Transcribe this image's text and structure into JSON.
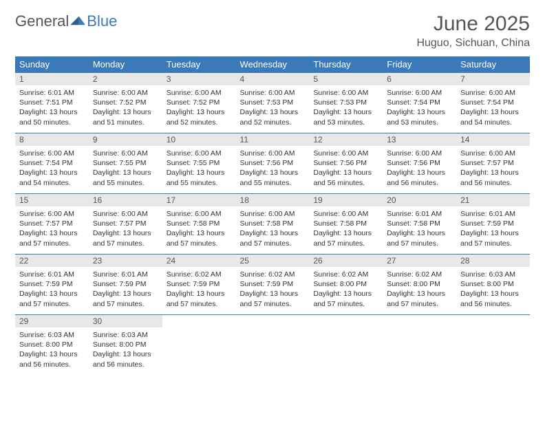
{
  "logo": {
    "word1": "General",
    "word2": "Blue"
  },
  "title": "June 2025",
  "location": "Huguo, Sichuan, China",
  "colors": {
    "header_bg": "#3a7ab8",
    "header_fg": "#ffffff",
    "daynum_bg": "#e8e8e8",
    "text": "#333333",
    "muted": "#555555",
    "rule": "#3a7ab8"
  },
  "typography": {
    "month_title_fontsize": 30,
    "location_fontsize": 16,
    "dayhdr_fontsize": 13,
    "daynum_fontsize": 12,
    "body_fontsize": 10.5
  },
  "weekdays": [
    "Sunday",
    "Monday",
    "Tuesday",
    "Wednesday",
    "Thursday",
    "Friday",
    "Saturday"
  ],
  "days": [
    {
      "n": 1,
      "sunrise": "6:01 AM",
      "sunset": "7:51 PM",
      "daylight": "13 hours and 50 minutes."
    },
    {
      "n": 2,
      "sunrise": "6:00 AM",
      "sunset": "7:52 PM",
      "daylight": "13 hours and 51 minutes."
    },
    {
      "n": 3,
      "sunrise": "6:00 AM",
      "sunset": "7:52 PM",
      "daylight": "13 hours and 52 minutes."
    },
    {
      "n": 4,
      "sunrise": "6:00 AM",
      "sunset": "7:53 PM",
      "daylight": "13 hours and 52 minutes."
    },
    {
      "n": 5,
      "sunrise": "6:00 AM",
      "sunset": "7:53 PM",
      "daylight": "13 hours and 53 minutes."
    },
    {
      "n": 6,
      "sunrise": "6:00 AM",
      "sunset": "7:54 PM",
      "daylight": "13 hours and 53 minutes."
    },
    {
      "n": 7,
      "sunrise": "6:00 AM",
      "sunset": "7:54 PM",
      "daylight": "13 hours and 54 minutes."
    },
    {
      "n": 8,
      "sunrise": "6:00 AM",
      "sunset": "7:54 PM",
      "daylight": "13 hours and 54 minutes."
    },
    {
      "n": 9,
      "sunrise": "6:00 AM",
      "sunset": "7:55 PM",
      "daylight": "13 hours and 55 minutes."
    },
    {
      "n": 10,
      "sunrise": "6:00 AM",
      "sunset": "7:55 PM",
      "daylight": "13 hours and 55 minutes."
    },
    {
      "n": 11,
      "sunrise": "6:00 AM",
      "sunset": "7:56 PM",
      "daylight": "13 hours and 55 minutes."
    },
    {
      "n": 12,
      "sunrise": "6:00 AM",
      "sunset": "7:56 PM",
      "daylight": "13 hours and 56 minutes."
    },
    {
      "n": 13,
      "sunrise": "6:00 AM",
      "sunset": "7:56 PM",
      "daylight": "13 hours and 56 minutes."
    },
    {
      "n": 14,
      "sunrise": "6:00 AM",
      "sunset": "7:57 PM",
      "daylight": "13 hours and 56 minutes."
    },
    {
      "n": 15,
      "sunrise": "6:00 AM",
      "sunset": "7:57 PM",
      "daylight": "13 hours and 57 minutes."
    },
    {
      "n": 16,
      "sunrise": "6:00 AM",
      "sunset": "7:57 PM",
      "daylight": "13 hours and 57 minutes."
    },
    {
      "n": 17,
      "sunrise": "6:00 AM",
      "sunset": "7:58 PM",
      "daylight": "13 hours and 57 minutes."
    },
    {
      "n": 18,
      "sunrise": "6:00 AM",
      "sunset": "7:58 PM",
      "daylight": "13 hours and 57 minutes."
    },
    {
      "n": 19,
      "sunrise": "6:00 AM",
      "sunset": "7:58 PM",
      "daylight": "13 hours and 57 minutes."
    },
    {
      "n": 20,
      "sunrise": "6:01 AM",
      "sunset": "7:58 PM",
      "daylight": "13 hours and 57 minutes."
    },
    {
      "n": 21,
      "sunrise": "6:01 AM",
      "sunset": "7:59 PM",
      "daylight": "13 hours and 57 minutes."
    },
    {
      "n": 22,
      "sunrise": "6:01 AM",
      "sunset": "7:59 PM",
      "daylight": "13 hours and 57 minutes."
    },
    {
      "n": 23,
      "sunrise": "6:01 AM",
      "sunset": "7:59 PM",
      "daylight": "13 hours and 57 minutes."
    },
    {
      "n": 24,
      "sunrise": "6:02 AM",
      "sunset": "7:59 PM",
      "daylight": "13 hours and 57 minutes."
    },
    {
      "n": 25,
      "sunrise": "6:02 AM",
      "sunset": "7:59 PM",
      "daylight": "13 hours and 57 minutes."
    },
    {
      "n": 26,
      "sunrise": "6:02 AM",
      "sunset": "8:00 PM",
      "daylight": "13 hours and 57 minutes."
    },
    {
      "n": 27,
      "sunrise": "6:02 AM",
      "sunset": "8:00 PM",
      "daylight": "13 hours and 57 minutes."
    },
    {
      "n": 28,
      "sunrise": "6:03 AM",
      "sunset": "8:00 PM",
      "daylight": "13 hours and 56 minutes."
    },
    {
      "n": 29,
      "sunrise": "6:03 AM",
      "sunset": "8:00 PM",
      "daylight": "13 hours and 56 minutes."
    },
    {
      "n": 30,
      "sunrise": "6:03 AM",
      "sunset": "8:00 PM",
      "daylight": "13 hours and 56 minutes."
    }
  ],
  "labels": {
    "sunrise": "Sunrise:",
    "sunset": "Sunset:",
    "daylight": "Daylight:"
  },
  "layout": {
    "start_weekday": 0,
    "cols": 7
  }
}
